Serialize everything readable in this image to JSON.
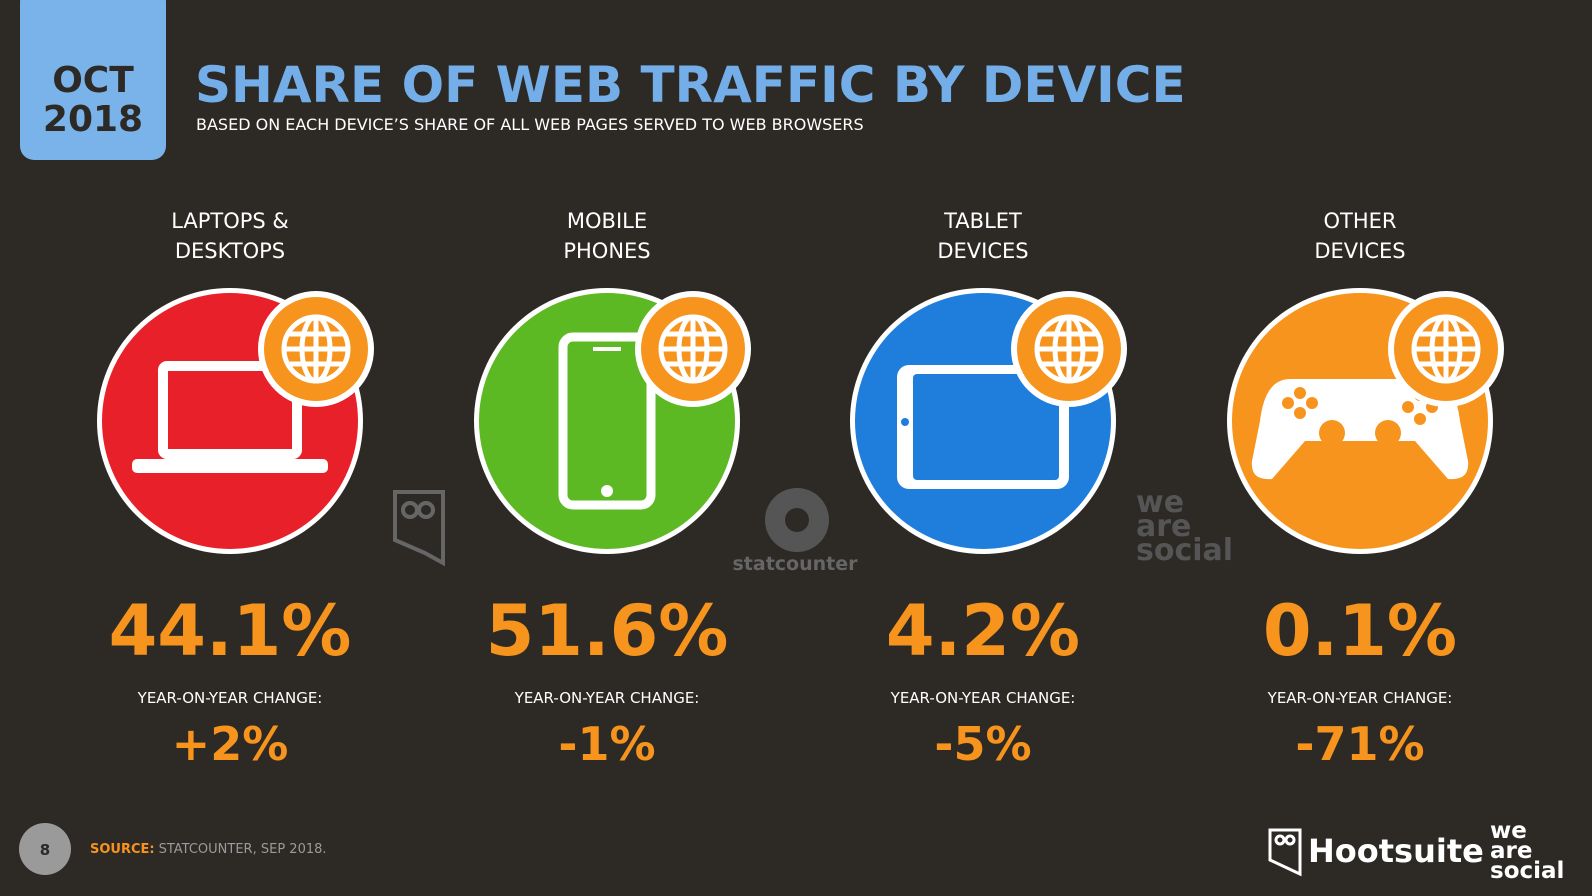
{
  "badge": {
    "month": "OCT",
    "year": "2018"
  },
  "header": {
    "title": "SHARE OF WEB TRAFFIC BY DEVICE",
    "subtitle": "BASED ON EACH DEVICE’S SHARE OF ALL WEB PAGES SERVED TO WEB BROWSERS"
  },
  "devices": [
    {
      "label_lines": [
        "LAPTOPS &",
        "DESKTOPS"
      ],
      "share": "44.1%",
      "change_label": "YEAR-ON-YEAR CHANGE:",
      "change": "+2%"
    },
    {
      "label_lines": [
        "MOBILE",
        "PHONES"
      ],
      "share": "51.6%",
      "change_label": "YEAR-ON-YEAR CHANGE:",
      "change": "-1%"
    },
    {
      "label_lines": [
        "TABLET",
        "DEVICES"
      ],
      "share": "4.2%",
      "change_label": "YEAR-ON-YEAR CHANGE:",
      "change": "-5%"
    },
    {
      "label_lines": [
        "OTHER",
        "DEVICES"
      ],
      "share": "0.1%",
      "change_label": "YEAR-ON-YEAR CHANGE:",
      "change": "-71%"
    }
  ],
  "watermarks": {
    "statcounter": "statcounter",
    "we_are_social": [
      "we",
      "are",
      "social"
    ]
  },
  "footer": {
    "page": "8",
    "source_label": "SOURCE:",
    "source": "STATCOUNTER, SEP 2018.",
    "brand": "Hootsuite",
    "brand2": [
      "we",
      "are",
      "social"
    ]
  }
}
